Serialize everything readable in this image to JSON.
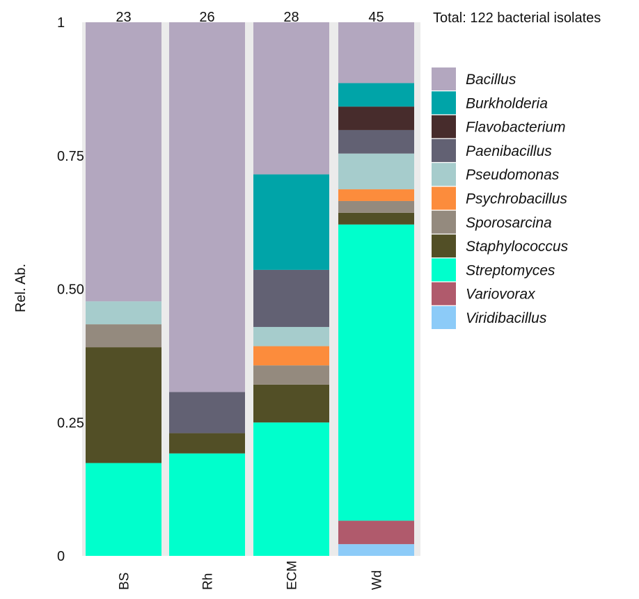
{
  "chart_data": {
    "type": "bar",
    "stacked": true,
    "normalized": true,
    "ylabel": "Rel. Ab.",
    "xlabel": "",
    "ylim": [
      0,
      1
    ],
    "yticks": [
      {
        "value": 0,
        "label": "0"
      },
      {
        "value": 0.25,
        "label": "0.25"
      },
      {
        "value": 0.5,
        "label": "0.50"
      },
      {
        "value": 0.75,
        "label": "0.75"
      },
      {
        "value": 1,
        "label": "1"
      }
    ],
    "annotation": "Total: 122 bacterial isolates",
    "categories": [
      "BS",
      "Rh",
      "ECM",
      "Wd"
    ],
    "counts": [
      "23",
      "26",
      "28",
      "45"
    ],
    "series": [
      {
        "name": "Viridibacillus",
        "color": "#8ccbf8",
        "values": [
          0,
          0,
          0,
          0.022
        ]
      },
      {
        "name": "Variovorax",
        "color": "#b05a6c",
        "values": [
          0,
          0,
          0,
          0.044
        ]
      },
      {
        "name": "Streptomyces",
        "color": "#00ffcc",
        "values": [
          0.174,
          0.192,
          0.25,
          0.555
        ]
      },
      {
        "name": "Staphylococcus",
        "color": "#524f26",
        "values": [
          0.217,
          0.038,
          0.071,
          0.022
        ]
      },
      {
        "name": "Sporosarcina",
        "color": "#948a7e",
        "values": [
          0.043,
          0,
          0.036,
          0.022
        ]
      },
      {
        "name": "Psychrobacillus",
        "color": "#fc8c3c",
        "values": [
          0,
          0,
          0.036,
          0.022
        ]
      },
      {
        "name": "Pseudomonas",
        "color": "#a6cccc",
        "values": [
          0.043,
          0,
          0.036,
          0.067
        ]
      },
      {
        "name": "Paenibacillus",
        "color": "#626173",
        "values": [
          0,
          0.077,
          0.107,
          0.044
        ]
      },
      {
        "name": "Flavobacterium",
        "color": "#472c2c",
        "values": [
          0,
          0,
          0,
          0.044
        ]
      },
      {
        "name": "Burkholderia",
        "color": "#00a4a8",
        "values": [
          0,
          0,
          0.179,
          0.044
        ]
      },
      {
        "name": "Bacillus",
        "color": "#b3a7bf",
        "values": [
          0.523,
          0.693,
          0.285,
          0.114
        ]
      }
    ],
    "legend": [
      {
        "name": "Bacillus",
        "color": "#b3a7bf"
      },
      {
        "name": "Burkholderia",
        "color": "#00a4a8"
      },
      {
        "name": "Flavobacterium",
        "color": "#472c2c"
      },
      {
        "name": "Paenibacillus",
        "color": "#626173"
      },
      {
        "name": "Pseudomonas",
        "color": "#a6cccc"
      },
      {
        "name": "Psychrobacillus",
        "color": "#fc8c3c"
      },
      {
        "name": "Sporosarcina",
        "color": "#948a7e"
      },
      {
        "name": "Staphylococcus",
        "color": "#524f26"
      },
      {
        "name": "Streptomyces",
        "color": "#00ffcc"
      },
      {
        "name": "Variovorax",
        "color": "#b05a6c"
      },
      {
        "name": "Viridibacillus",
        "color": "#8ccbf8"
      }
    ],
    "legend_position": "right",
    "grid": false,
    "panel_background": "#ebebeb"
  }
}
